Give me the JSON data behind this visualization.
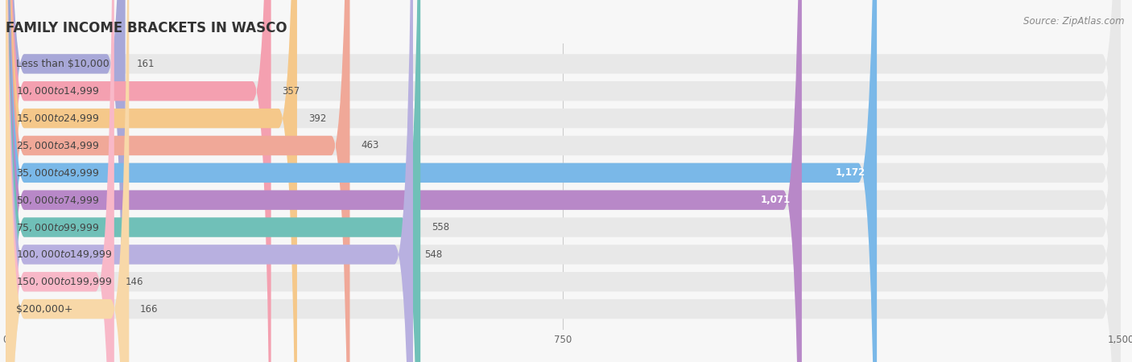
{
  "title": "FAMILY INCOME BRACKETS IN WASCO",
  "source": "Source: ZipAtlas.com",
  "categories": [
    "Less than $10,000",
    "$10,000 to $14,999",
    "$15,000 to $24,999",
    "$25,000 to $34,999",
    "$35,000 to $49,999",
    "$50,000 to $74,999",
    "$75,000 to $99,999",
    "$100,000 to $149,999",
    "$150,000 to $199,999",
    "$200,000+"
  ],
  "values": [
    161,
    357,
    392,
    463,
    1172,
    1071,
    558,
    548,
    146,
    166
  ],
  "bar_colors": [
    "#a8a8d8",
    "#f4a0b0",
    "#f5c88a",
    "#f0a898",
    "#7ab8e8",
    "#b888c8",
    "#70c0b8",
    "#b8b0e0",
    "#f8b8c8",
    "#f8d8a8"
  ],
  "bg_color": "#f7f7f7",
  "bar_bg_color": "#e8e8e8",
  "xlim": [
    0,
    1500
  ],
  "xticks": [
    0,
    750,
    1500
  ],
  "title_fontsize": 12,
  "label_fontsize": 9,
  "value_fontsize": 8.5,
  "source_fontsize": 8.5
}
